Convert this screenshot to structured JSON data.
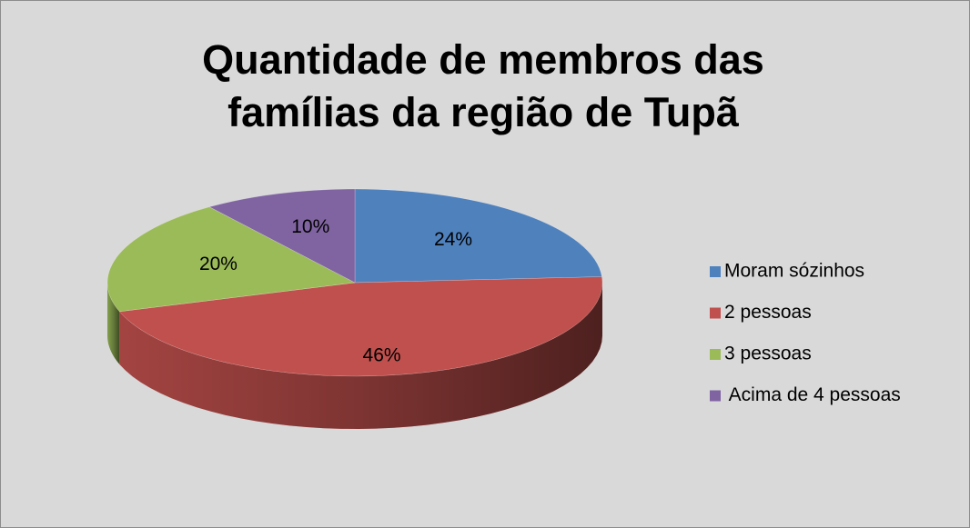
{
  "chart_data": {
    "type": "pie",
    "title": "Quantidade de membros das famílias da região de Tupã",
    "categories": [
      "Moram sózinhos",
      "2 pessoas",
      "3 pessoas",
      " Acima de 4 pessoas"
    ],
    "values": [
      24,
      46,
      20,
      10
    ],
    "value_labels": [
      "24%",
      "46%",
      "20%",
      "10%"
    ],
    "colors": [
      "#4f81bd",
      "#c0504d",
      "#9bbb59",
      "#8064a2"
    ],
    "legend": "right"
  }
}
